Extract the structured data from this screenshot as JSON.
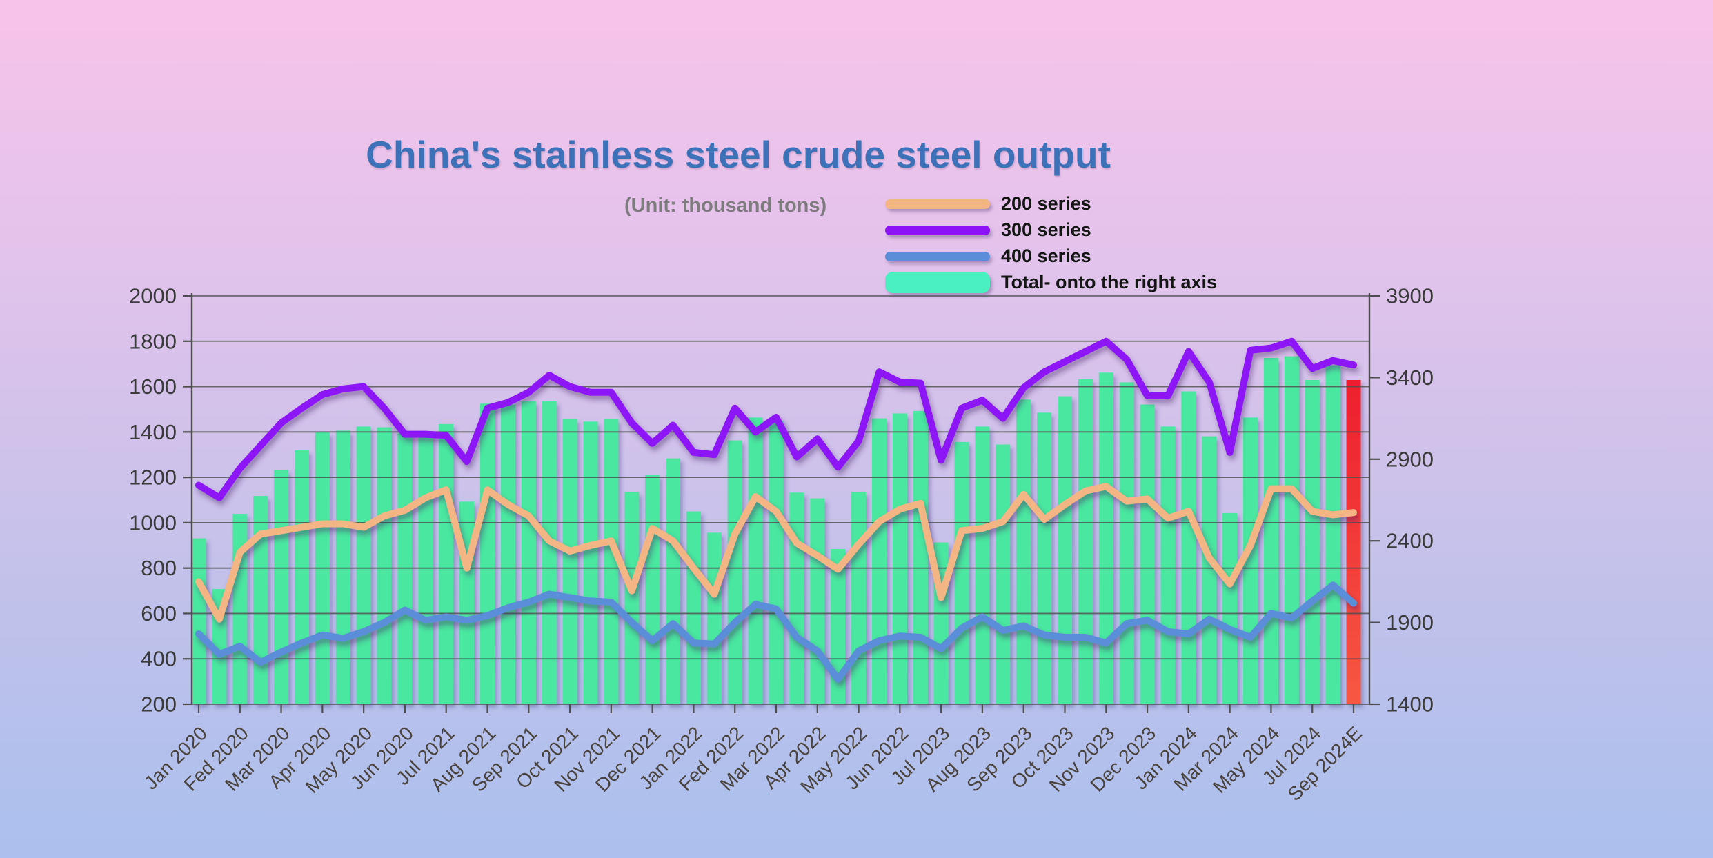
{
  "title": "China's stainless steel crude steel output",
  "unit_note": "(Unit: thousand tons)",
  "legend": [
    {
      "label": "200 series",
      "color": "#f2b583",
      "swatch": "line"
    },
    {
      "label": "300 series",
      "color": "#8d13f6",
      "swatch": "line"
    },
    {
      "label": "400 series",
      "color": "#5a8ed8",
      "swatch": "line"
    },
    {
      "label": "Total- onto the right axis",
      "color": "#4af0c0",
      "swatch": "bar"
    }
  ],
  "chart_data": {
    "type": "combo-bar-line",
    "n_points": 57,
    "x_tick_labels": [
      "Jan 2020",
      "Fed 2020",
      "Mar 2020",
      "Apr 2020",
      "May 2020",
      "Jun 2020",
      "Jul 2021",
      "Aug 2021",
      "Sep 2021",
      "Oct 2021",
      "Nov 2021",
      "Dec 2021",
      "Jan 2022",
      "Fed 2022",
      "Mar 2022",
      "Apr 2022",
      "May 2022",
      "Jun 2022",
      "Jul 2023",
      "Aug 2023",
      "Sep 2023",
      "Oct 2023",
      "Nov 2023",
      "Dec 2023",
      "Jan 2024",
      "Mar 2024",
      "May 2024",
      "Jul 2024",
      "Sep 2024E"
    ],
    "x_tick_every_n_points": 2,
    "left_axis": {
      "min": 200,
      "max": 2000,
      "tick_step": 200,
      "ticks": [
        2000,
        1800,
        1600,
        1400,
        1200,
        1000,
        800,
        600,
        400,
        200
      ]
    },
    "right_axis": {
      "min": 1400,
      "max": 3900,
      "tick_step": 500,
      "ticks": [
        3900,
        3400,
        2900,
        2400,
        1900,
        1400
      ]
    },
    "grid": "horizontal",
    "legend_position": "top-right",
    "series": [
      {
        "name": "200 series",
        "type": "line",
        "axis": "left",
        "color": "#f2b583",
        "values": [
          740,
          575,
          870,
          950,
          965,
          980,
          995,
          995,
          980,
          1030,
          1055,
          1110,
          1145,
          800,
          1145,
          1080,
          1030,
          920,
          875,
          900,
          920,
          700,
          975,
          920,
          800,
          685,
          950,
          1115,
          1050,
          910,
          855,
          795,
          905,
          1005,
          1060,
          1085,
          670,
          965,
          975,
          1005,
          1125,
          1015,
          1080,
          1140,
          1160,
          1095,
          1105,
          1020,
          1050,
          845,
          730,
          900,
          1150,
          1150,
          1050,
          1035,
          1045
        ]
      },
      {
        "name": "300 series",
        "type": "line",
        "axis": "left",
        "color": "#8d13f6",
        "values": [
          1165,
          1110,
          1240,
          1340,
          1440,
          1505,
          1565,
          1590,
          1600,
          1505,
          1390,
          1390,
          1385,
          1270,
          1505,
          1530,
          1575,
          1650,
          1600,
          1575,
          1575,
          1440,
          1350,
          1430,
          1310,
          1300,
          1505,
          1400,
          1465,
          1290,
          1370,
          1245,
          1360,
          1665,
          1620,
          1615,
          1275,
          1505,
          1540,
          1460,
          1595,
          1665,
          1710,
          1755,
          1800,
          1720,
          1560,
          1560,
          1755,
          1620,
          1310,
          1760,
          1770,
          1800,
          1680,
          1715,
          1695
        ]
      },
      {
        "name": "400 series",
        "type": "line",
        "axis": "left",
        "color": "#5a8ed8",
        "values": [
          510,
          420,
          455,
          385,
          430,
          470,
          505,
          490,
          520,
          560,
          615,
          570,
          585,
          570,
          590,
          625,
          650,
          685,
          670,
          655,
          650,
          560,
          480,
          555,
          470,
          465,
          560,
          640,
          620,
          495,
          435,
          310,
          435,
          480,
          500,
          495,
          445,
          535,
          585,
          525,
          545,
          505,
          495,
          495,
          470,
          555,
          570,
          520,
          510,
          575,
          530,
          495,
          600,
          580,
          655,
          725,
          645
        ]
      },
      {
        "name": "Total- onto the right axis",
        "type": "bar",
        "axis": "right",
        "color": "#48e79f",
        "estimate_bar_color_top": "#ee1e2e",
        "estimate_bar_color_bottom": "#f65843",
        "last_point_is_estimate": true,
        "values": [
          2415,
          2105,
          2565,
          2675,
          2835,
          2955,
          3065,
          3075,
          3100,
          3095,
          3060,
          3070,
          3115,
          2640,
          3240,
          3235,
          3255,
          3255,
          3145,
          3130,
          3145,
          2700,
          2805,
          2905,
          2580,
          2450,
          3015,
          3155,
          3135,
          2695,
          2660,
          2350,
          2700,
          3150,
          3180,
          3195,
          2390,
          3005,
          3100,
          2990,
          3265,
          3185,
          3285,
          3390,
          3430,
          3370,
          3235,
          3100,
          3315,
          3040,
          2570,
          3155,
          3520,
          3530,
          3385,
          3475,
          3385
        ]
      }
    ],
    "style": {
      "grid_color": "#4e4e4e",
      "axis_text_color": "#3b3b3b",
      "x_label_color": "#4a443e",
      "line_width": 10
    }
  }
}
